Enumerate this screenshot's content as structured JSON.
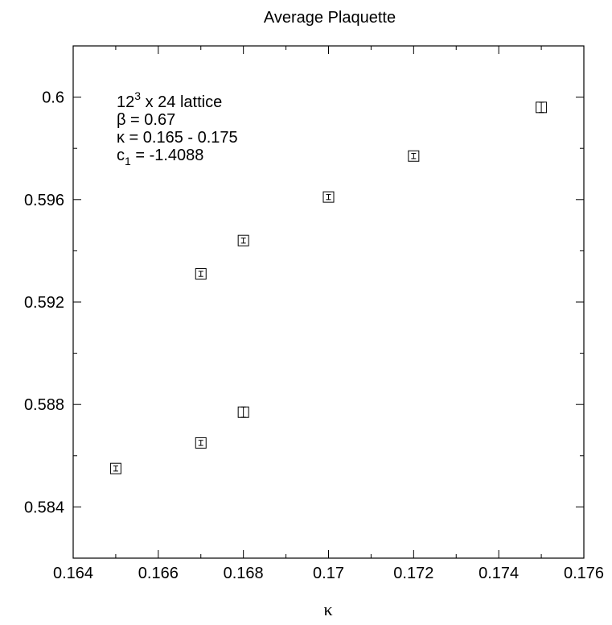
{
  "chart_data": {
    "type": "scatter",
    "title": "Average Plaquette",
    "xlabel": "κ",
    "ylabel": "",
    "xlim": [
      0.164,
      0.176
    ],
    "ylim": [
      0.582,
      0.602
    ],
    "x_ticks": [
      0.164,
      0.166,
      0.168,
      0.17,
      0.172,
      0.174,
      0.176
    ],
    "x_tick_labels": [
      "0.164",
      "0.166",
      "0.168",
      "0.17",
      "0.172",
      "0.174",
      "0.176"
    ],
    "y_ticks": [
      0.584,
      0.588,
      0.592,
      0.596,
      0.6
    ],
    "y_tick_labels": [
      "0.584",
      "0.588",
      "0.592",
      "0.596",
      "0.6"
    ],
    "grid": false,
    "marker": "square-with-errorbar",
    "series": [
      {
        "x": [
          0.165,
          0.167,
          0.167,
          0.168,
          0.168,
          0.17,
          0.172,
          0.175
        ],
        "y": [
          0.5855,
          0.5865,
          0.5931,
          0.5877,
          0.5944,
          0.5961,
          0.5977,
          0.5996
        ],
        "yerr": [
          0.0001,
          0.0001,
          0.0001,
          0.0002,
          0.0001,
          0.0001,
          0.0001,
          0.0002
        ]
      }
    ],
    "annotations": {
      "line1_base": "12",
      "line1_sup": "3",
      "line1_rest": " x 24 lattice",
      "line2": "β = 0.67",
      "line3": "κ = 0.165 - 0.175",
      "line4_base": "c",
      "line4_sub": "1",
      "line4_rest": " = -1.4088"
    }
  },
  "colors": {
    "axis": "#000000",
    "marker": "#000000",
    "background": "#ffffff"
  }
}
